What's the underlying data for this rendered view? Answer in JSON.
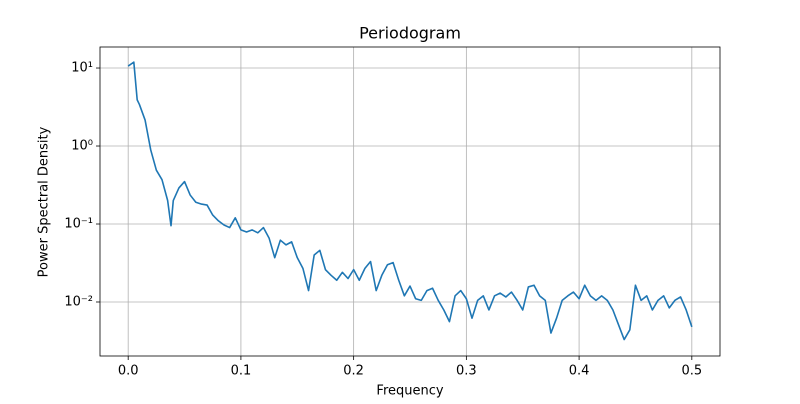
{
  "chart_data": {
    "type": "line",
    "title": "Periodogram",
    "x_label": "Frequency",
    "y_label": "Power Spectral Density",
    "log_y": true,
    "grid": true,
    "xlim": [
      -0.025,
      0.525
    ],
    "ylim": [
      0.00203,
      18.6
    ],
    "xticks": [
      {
        "value": 0,
        "label": "0.0"
      },
      0.1,
      0.2,
      0.3,
      0.4,
      0.5
    ],
    "yticks": [
      {
        "value": 0.01,
        "label": "10⁻²"
      },
      {
        "value": 0.1,
        "label": "10⁻¹"
      },
      {
        "value": 1,
        "label": "10⁰"
      },
      {
        "value": 10,
        "label": "10¹"
      }
    ],
    "x": [
      0,
      0.005,
      0.008,
      0.01,
      0.015,
      0.02,
      0.025,
      0.03,
      0.035,
      0.038,
      0.04,
      0.045,
      0.05,
      0.055,
      0.06,
      0.065,
      0.07,
      0.075,
      0.08,
      0.085,
      0.09,
      0.095,
      0.1,
      0.105,
      0.11,
      0.115,
      0.12,
      0.125,
      0.13,
      0.135,
      0.14,
      0.145,
      0.15,
      0.155,
      0.16,
      0.165,
      0.17,
      0.175,
      0.18,
      0.185,
      0.19,
      0.195,
      0.2,
      0.205,
      0.21,
      0.215,
      0.22,
      0.225,
      0.23,
      0.235,
      0.24,
      0.245,
      0.25,
      0.255,
      0.26,
      0.265,
      0.27,
      0.275,
      0.28,
      0.285,
      0.29,
      0.295,
      0.3,
      0.305,
      0.31,
      0.315,
      0.32,
      0.325,
      0.33,
      0.335,
      0.34,
      0.345,
      0.35,
      0.355,
      0.36,
      0.365,
      0.37,
      0.375,
      0.38,
      0.385,
      0.39,
      0.395,
      0.4,
      0.405,
      0.41,
      0.415,
      0.42,
      0.425,
      0.43,
      0.435,
      0.44,
      0.445,
      0.45,
      0.455,
      0.46,
      0.465,
      0.47,
      0.475,
      0.48,
      0.485,
      0.49,
      0.495,
      0.5
    ],
    "series": [
      {
        "color": "#1f77b4",
        "values": [
          10.6,
          11.9,
          3.9,
          3.4,
          2.15,
          0.89,
          0.49,
          0.37,
          0.2,
          0.095,
          0.2,
          0.29,
          0.35,
          0.235,
          0.19,
          0.18,
          0.175,
          0.13,
          0.11,
          0.097,
          0.09,
          0.12,
          0.084,
          0.079,
          0.084,
          0.077,
          0.09,
          0.066,
          0.037,
          0.062,
          0.054,
          0.059,
          0.037,
          0.027,
          0.014,
          0.04,
          0.046,
          0.026,
          0.022,
          0.019,
          0.024,
          0.02,
          0.026,
          0.019,
          0.027,
          0.033,
          0.014,
          0.022,
          0.03,
          0.032,
          0.019,
          0.012,
          0.016,
          0.011,
          0.0105,
          0.014,
          0.015,
          0.0105,
          0.0079,
          0.0056,
          0.012,
          0.014,
          0.011,
          0.0062,
          0.0105,
          0.012,
          0.0079,
          0.012,
          0.013,
          0.0116,
          0.0134,
          0.0105,
          0.0079,
          0.0156,
          0.0164,
          0.012,
          0.0105,
          0.004,
          0.0062,
          0.0105,
          0.012,
          0.0134,
          0.011,
          0.0164,
          0.012,
          0.0105,
          0.012,
          0.0105,
          0.0079,
          0.0051,
          0.0033,
          0.0044,
          0.0164,
          0.0105,
          0.012,
          0.0079,
          0.0105,
          0.012,
          0.0084,
          0.0105,
          0.0116,
          0.0079,
          0.0048
        ]
      }
    ]
  }
}
